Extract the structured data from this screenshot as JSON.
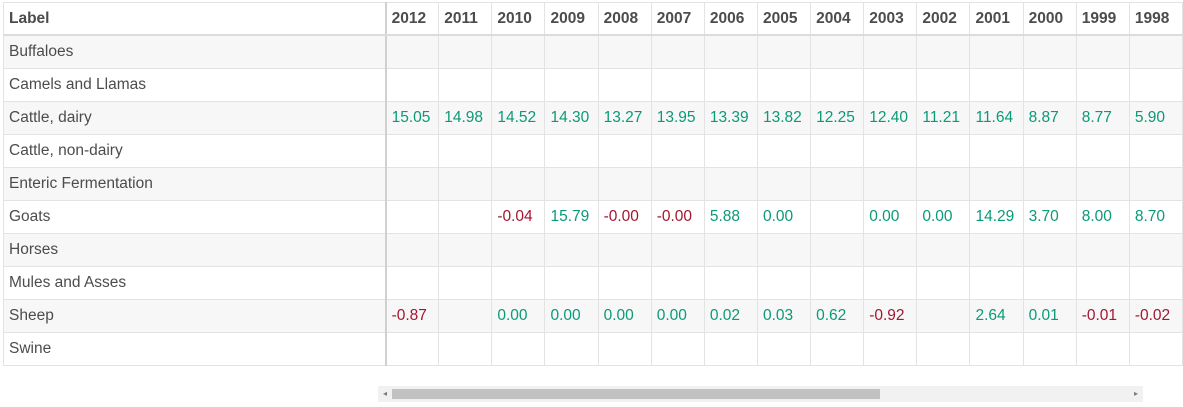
{
  "table": {
    "label_header": "Label",
    "years": [
      "2012",
      "2011",
      "2010",
      "2009",
      "2008",
      "2007",
      "2006",
      "2005",
      "2004",
      "2003",
      "2002",
      "2001",
      "2000",
      "1999",
      "1998"
    ],
    "rows": [
      {
        "label": "Buffaloes",
        "values": [
          "",
          "",
          "",
          "",
          "",
          "",
          "",
          "",
          "",
          "",
          "",
          "",
          "",
          "",
          ""
        ]
      },
      {
        "label": "Camels and Llamas",
        "values": [
          "",
          "",
          "",
          "",
          "",
          "",
          "",
          "",
          "",
          "",
          "",
          "",
          "",
          "",
          ""
        ]
      },
      {
        "label": "Cattle, dairy",
        "values": [
          "15.05",
          "14.98",
          "14.52",
          "14.30",
          "13.27",
          "13.95",
          "13.39",
          "13.82",
          "12.25",
          "12.40",
          "11.21",
          "11.64",
          "8.87",
          "8.77",
          "5.90"
        ]
      },
      {
        "label": "Cattle, non-dairy",
        "values": [
          "",
          "",
          "",
          "",
          "",
          "",
          "",
          "",
          "",
          "",
          "",
          "",
          "",
          "",
          ""
        ]
      },
      {
        "label": "Enteric Fermentation",
        "values": [
          "",
          "",
          "",
          "",
          "",
          "",
          "",
          "",
          "",
          "",
          "",
          "",
          "",
          "",
          ""
        ]
      },
      {
        "label": "Goats",
        "values": [
          "",
          "",
          "-0.04",
          "15.79",
          "-0.00",
          "-0.00",
          "5.88",
          "0.00",
          "",
          "0.00",
          "0.00",
          "14.29",
          "3.70",
          "8.00",
          "8.70"
        ]
      },
      {
        "label": "Horses",
        "values": [
          "",
          "",
          "",
          "",
          "",
          "",
          "",
          "",
          "",
          "",
          "",
          "",
          "",
          "",
          ""
        ]
      },
      {
        "label": "Mules and Asses",
        "values": [
          "",
          "",
          "",
          "",
          "",
          "",
          "",
          "",
          "",
          "",
          "",
          "",
          "",
          "",
          ""
        ]
      },
      {
        "label": "Sheep",
        "values": [
          "-0.87",
          "",
          "0.00",
          "0.00",
          "0.00",
          "0.00",
          "0.02",
          "0.03",
          "0.62",
          "-0.92",
          "",
          "2.64",
          "0.01",
          "-0.01",
          "-0.02"
        ]
      },
      {
        "label": "Swine",
        "values": [
          "",
          "",
          "",
          "",
          "",
          "",
          "",
          "",
          "",
          "",
          "",
          "",
          "",
          "",
          ""
        ]
      }
    ]
  },
  "scrollbar": {
    "left_arrow": "◂",
    "right_arrow": "▸"
  },
  "colors": {
    "positive": "#0a9a78",
    "negative": "#a31631"
  }
}
